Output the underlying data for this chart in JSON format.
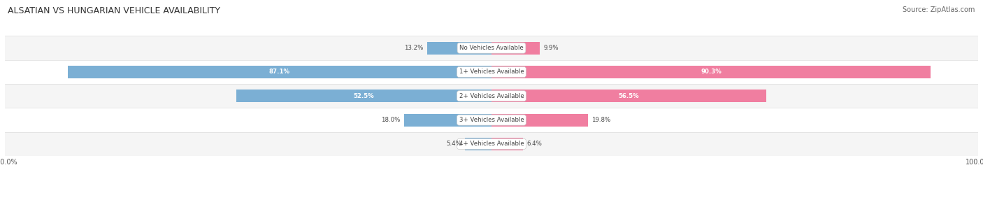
{
  "title": "ALSATIAN VS HUNGARIAN VEHICLE AVAILABILITY",
  "source": "Source: ZipAtlas.com",
  "categories": [
    "No Vehicles Available",
    "1+ Vehicles Available",
    "2+ Vehicles Available",
    "3+ Vehicles Available",
    "4+ Vehicles Available"
  ],
  "alsatian": [
    13.2,
    87.1,
    52.5,
    18.0,
    5.4
  ],
  "hungarian": [
    9.9,
    90.3,
    56.5,
    19.8,
    6.4
  ],
  "alsatian_color": "#7BAFD4",
  "hungarian_color": "#F07EA0",
  "row_colors": [
    "#F5F5F5",
    "#FFFFFF",
    "#F5F5F5",
    "#FFFFFF",
    "#F5F5F5"
  ],
  "separator_color": "#DDDDDD",
  "label_bg_color": "#FFFFFF",
  "text_dark": "#444444",
  "text_white": "#FFFFFF",
  "max_value": 100.0,
  "bar_height": 0.52,
  "figsize": [
    14.06,
    2.86
  ],
  "dpi": 100
}
